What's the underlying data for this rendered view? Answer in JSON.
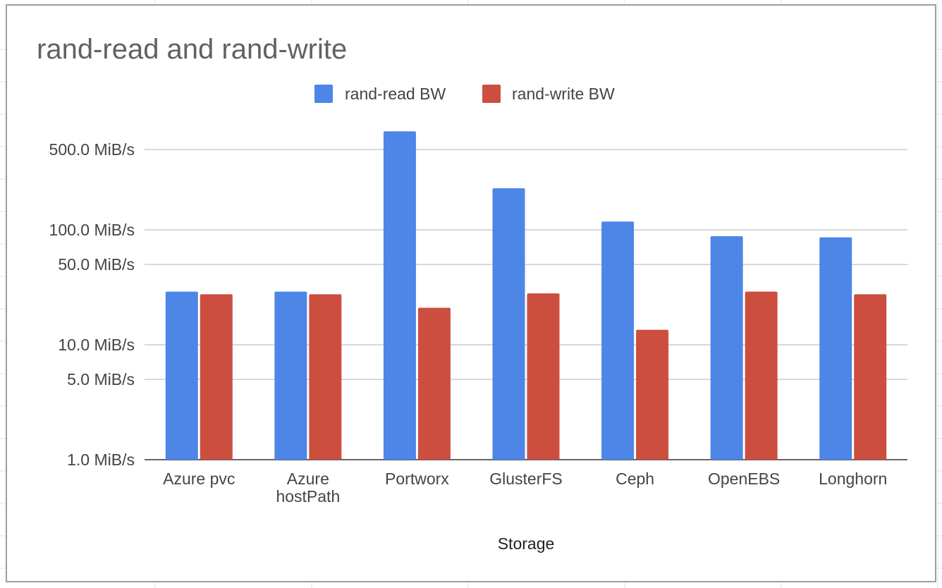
{
  "chart_data": {
    "type": "bar",
    "title": "rand-read and rand-write",
    "xlabel": "Storage",
    "ylabel": "",
    "yscale": "log",
    "ylim": [
      1,
      750
    ],
    "yticks": [
      {
        "value": 1,
        "label": "1.0 MiB/s"
      },
      {
        "value": 5,
        "label": "5.0 MiB/s"
      },
      {
        "value": 10,
        "label": "10.0 MiB/s"
      },
      {
        "value": 50,
        "label": "50.0 MiB/s"
      },
      {
        "value": 100,
        "label": "100.0 MiB/s"
      },
      {
        "value": 500,
        "label": "500.0 MiB/s"
      }
    ],
    "categories": [
      [
        "Azure pvc"
      ],
      [
        "Azure",
        "hostPath"
      ],
      [
        "Portworx"
      ],
      [
        "GlusterFS"
      ],
      [
        "Ceph"
      ],
      [
        "OpenEBS"
      ],
      [
        "Longhorn"
      ]
    ],
    "series": [
      {
        "name": "rand-read BW",
        "color": "#4e86e8",
        "values": [
          29,
          29,
          720,
          230,
          118,
          88,
          86
        ]
      },
      {
        "name": "rand-write BW",
        "color": "#cc4e3f",
        "values": [
          27.5,
          27.5,
          21,
          28,
          13.5,
          29,
          27.5
        ]
      }
    ],
    "legend_position": "top-center",
    "grid": true
  }
}
